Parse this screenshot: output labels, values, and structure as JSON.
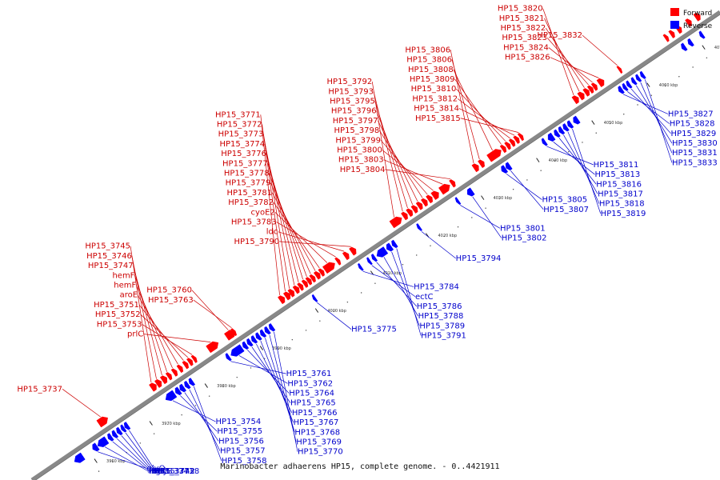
{
  "legend": {
    "forward_label": "Forward",
    "reverse_label": "Reverse",
    "forward_color": "#ff0000",
    "reverse_color": "#0000ff"
  },
  "caption": "Marinobacter adhaerens HP15, complete genome. - 0..4421911",
  "colors": {
    "axis": "#888888",
    "axis_dark": "#555555"
  },
  "ticks": [
    {
      "label": "3960 kbp",
      "kb": 3960
    },
    {
      "label": "3970 kbp",
      "kb": 3970
    },
    {
      "label": "3980 kbp",
      "kb": 3980
    },
    {
      "label": "3990 kbp",
      "kb": 3990
    },
    {
      "label": "4000 kbp",
      "kb": 4000
    },
    {
      "label": "4010 kbp",
      "kb": 4010
    },
    {
      "label": "4020 kbp",
      "kb": 4020
    },
    {
      "label": "4030 kbp",
      "kb": 4030
    },
    {
      "label": "4040 kbp",
      "kb": 4040
    },
    {
      "label": "4050 kbp",
      "kb": 4050
    },
    {
      "label": "4060 kbp",
      "kb": 4060
    },
    {
      "label": "4070 kbp",
      "kb": 4070
    }
  ],
  "forward_genes": [
    {
      "kb": 3963.5,
      "len": 1.6,
      "label": "HP15_3737"
    },
    {
      "kb": 3973.0,
      "len": 0.9,
      "label": "HP15_3745"
    },
    {
      "kb": 3974.0,
      "len": 0.8,
      "label": "HP15_3746"
    },
    {
      "kb": 3975.0,
      "len": 0.8,
      "label": "HP15_3747"
    },
    {
      "kb": 3976.0,
      "len": 0.6,
      "label": "hemF"
    },
    {
      "kb": 3977.0,
      "len": 0.6,
      "label": "hemF"
    },
    {
      "kb": 3978.0,
      "len": 0.6,
      "label": "aroE"
    },
    {
      "kb": 3979.0,
      "len": 0.6,
      "label": "HP15_3751"
    },
    {
      "kb": 3979.8,
      "len": 0.6,
      "label": "HP15_3752"
    },
    {
      "kb": 3980.6,
      "len": 0.5,
      "label": "HP15_3753"
    },
    {
      "kb": 3983.3,
      "len": 1.8,
      "label": "prlC"
    },
    {
      "kb": 3986.6,
      "len": 1.6,
      "label": "HP15_3760"
    },
    {
      "kb": 3987.8,
      "len": 0.4,
      "label": "HP15_3763"
    },
    {
      "kb": 3996.3,
      "len": 0.8,
      "label": "HP15_3771"
    },
    {
      "kb": 3997.3,
      "len": 0.8,
      "label": "HP15_3772"
    },
    {
      "kb": 3998.1,
      "len": 0.7,
      "label": "HP15_3773"
    },
    {
      "kb": 3999.0,
      "len": 0.7,
      "label": "HP15_3774"
    },
    {
      "kb": 3999.8,
      "len": 0.6,
      "label": "HP15_3776"
    },
    {
      "kb": 4000.6,
      "len": 0.6,
      "label": "HP15_3777"
    },
    {
      "kb": 4001.3,
      "len": 0.6,
      "label": "HP15_3778"
    },
    {
      "kb": 4002.0,
      "len": 0.6,
      "label": "HP15_3779"
    },
    {
      "kb": 4002.8,
      "len": 0.7,
      "label": "HP15_3781"
    },
    {
      "kb": 4003.6,
      "len": 0.6,
      "label": "HP15_3782"
    },
    {
      "kb": 4004.4,
      "len": 1.8,
      "label": "cyoE2"
    },
    {
      "kb": 4006.6,
      "len": 0.5,
      "label": "HP15_3783"
    },
    {
      "kb": 4008.0,
      "len": 0.7,
      "label": "ldc"
    },
    {
      "kb": 4009.2,
      "len": 0.8,
      "label": "HP15_3790"
    },
    {
      "kb": 4016.5,
      "len": 1.8,
      "label": "HP15_3792"
    },
    {
      "kb": 4018.6,
      "len": 0.7,
      "label": "HP15_3793"
    },
    {
      "kb": 4019.5,
      "len": 0.7,
      "label": "HP15_3795"
    },
    {
      "kb": 4020.4,
      "len": 0.7,
      "label": "HP15_3796"
    },
    {
      "kb": 4021.3,
      "len": 0.7,
      "label": "HP15_3797"
    },
    {
      "kb": 4022.2,
      "len": 0.7,
      "label": "HP15_3798"
    },
    {
      "kb": 4023.1,
      "len": 0.7,
      "label": "HP15_3799"
    },
    {
      "kb": 4024.0,
      "len": 1.0,
      "label": "HP15_3800"
    },
    {
      "kb": 4025.4,
      "len": 1.6,
      "label": "HP15_3803"
    },
    {
      "kb": 4027.3,
      "len": 0.6,
      "label": "HP15_3804"
    },
    {
      "kb": 4031.4,
      "len": 0.8,
      "label": "HP15_3806"
    },
    {
      "kb": 4032.5,
      "len": 0.7,
      "label": "HP15_3806"
    },
    {
      "kb": 4034.1,
      "len": 2.2,
      "label": "HP15_3808"
    },
    {
      "kb": 4036.5,
      "len": 0.6,
      "label": "HP15_3809"
    },
    {
      "kb": 4037.3,
      "len": 0.6,
      "label": "HP15_3810"
    },
    {
      "kb": 4038.1,
      "len": 0.6,
      "label": "HP15_3812"
    },
    {
      "kb": 4038.9,
      "len": 0.6,
      "label": "HP15_3814"
    },
    {
      "kb": 4039.7,
      "len": 0.5,
      "label": "HP15_3815"
    },
    {
      "kb": 4049.5,
      "len": 0.8,
      "label": "HP15_3820"
    },
    {
      "kb": 4050.5,
      "len": 0.8,
      "label": "HP15_3821"
    },
    {
      "kb": 4051.5,
      "len": 0.7,
      "label": "HP15_3822"
    },
    {
      "kb": 4052.3,
      "len": 0.6,
      "label": "HP15_3823"
    },
    {
      "kb": 4053.0,
      "len": 0.6,
      "label": "HP15_3824"
    },
    {
      "kb": 4054.0,
      "len": 0.9,
      "label": "HP15_3826"
    },
    {
      "kb": 4057.6,
      "len": 0.4,
      "label": "HP15_3832"
    },
    {
      "kb": 4066.0,
      "len": 0.5,
      "label": ""
    },
    {
      "kb": 4067.0,
      "len": 0.6,
      "label": ""
    },
    {
      "kb": 4068.2,
      "len": 0.7,
      "label": ""
    },
    {
      "kb": 4070.0,
      "len": 0.7,
      "label": ""
    },
    {
      "kb": 4071.5,
      "len": 0.8,
      "label": ""
    }
  ],
  "reverse_genes": [
    {
      "kb": 3957.3,
      "len": 1.5,
      "label": ""
    },
    {
      "kb": 3960.6,
      "len": 0.8,
      "label": "glyQ"
    },
    {
      "kb": 3961.5,
      "len": 1.6,
      "label": "HP15_3741"
    },
    {
      "kb": 3963.4,
      "len": 0.6,
      "label": "HP15_3742"
    },
    {
      "kb": 3964.2,
      "len": 0.6,
      "label": "fmt"
    },
    {
      "kb": 3965.0,
      "len": 0.6,
      "label": "def"
    },
    {
      "kb": 3965.8,
      "len": 0.5,
      "label": "HP15_3738"
    },
    {
      "kb": 3966.4,
      "len": 0.6,
      "label": "glyS"
    },
    {
      "kb": 3973.8,
      "len": 1.6,
      "label": "HP15_3754"
    },
    {
      "kb": 3975.6,
      "len": 0.7,
      "label": "HP15_3755"
    },
    {
      "kb": 3976.4,
      "len": 0.7,
      "label": "HP15_3756"
    },
    {
      "kb": 3977.3,
      "len": 0.6,
      "label": "HP15_3757"
    },
    {
      "kb": 3978.1,
      "len": 0.6,
      "label": "HP15_3758"
    },
    {
      "kb": 3984.8,
      "len": 0.5,
      "label": "HP15_3761"
    },
    {
      "kb": 3985.6,
      "len": 2.0,
      "label": "HP15_3762"
    },
    {
      "kb": 3987.8,
      "len": 0.6,
      "label": "HP15_3764"
    },
    {
      "kb": 3988.6,
      "len": 0.6,
      "label": "HP15_3765"
    },
    {
      "kb": 3989.4,
      "len": 0.6,
      "label": "HP15_3766"
    },
    {
      "kb": 3990.2,
      "len": 0.6,
      "label": "HP15_3767"
    },
    {
      "kb": 3991.0,
      "len": 0.6,
      "label": "HP15_3768"
    },
    {
      "kb": 3991.8,
      "len": 0.6,
      "label": "HP15_3769"
    },
    {
      "kb": 3992.6,
      "len": 0.6,
      "label": "HP15_3770"
    },
    {
      "kb": 4000.5,
      "len": 0.4,
      "label": "HP15_3775"
    },
    {
      "kb": 4008.8,
      "len": 0.4,
      "label": "HP15_3784"
    },
    {
      "kb": 4010.4,
      "len": 0.4,
      "label": "ectC"
    },
    {
      "kb": 4011.2,
      "len": 0.5,
      "label": "HP15_3786"
    },
    {
      "kb": 4012.0,
      "len": 1.6,
      "label": "HP15_3788"
    },
    {
      "kb": 4013.8,
      "len": 0.8,
      "label": "HP15_3789"
    },
    {
      "kb": 4014.8,
      "len": 0.6,
      "label": "HP15_3791"
    },
    {
      "kb": 4019.4,
      "len": 0.4,
      "label": "HP15_3794"
    },
    {
      "kb": 4026.4,
      "len": 0.4,
      "label": "HP15_3801"
    },
    {
      "kb": 4028.4,
      "len": 0.9,
      "label": "HP15_3802"
    },
    {
      "kb": 4034.6,
      "len": 0.7,
      "label": "HP15_3805"
    },
    {
      "kb": 4035.4,
      "len": 0.7,
      "label": "HP15_3807"
    },
    {
      "kb": 4042.0,
      "len": 0.5,
      "label": "HP15_3811"
    },
    {
      "kb": 4043.0,
      "len": 0.9,
      "label": "HP15_3813"
    },
    {
      "kb": 4044.2,
      "len": 0.6,
      "label": "HP15_3816"
    },
    {
      "kb": 4045.0,
      "len": 0.6,
      "label": "HP15_3817"
    },
    {
      "kb": 4045.8,
      "len": 0.6,
      "label": "HP15_3818"
    },
    {
      "kb": 4046.6,
      "len": 0.6,
      "label": "HP15_3819"
    },
    {
      "kb": 4047.6,
      "len": 0.8,
      "label": ""
    },
    {
      "kb": 4055.8,
      "len": 0.6,
      "label": "HP15_3827"
    },
    {
      "kb": 4056.6,
      "len": 0.5,
      "label": "HP15_3828"
    },
    {
      "kb": 4057.3,
      "len": 0.5,
      "label": "HP15_3829"
    },
    {
      "kb": 4058.2,
      "len": 0.5,
      "label": "HP15_3830"
    },
    {
      "kb": 4059.0,
      "len": 0.5,
      "label": "HP15_3831"
    },
    {
      "kb": 4059.8,
      "len": 0.5,
      "label": "HP15_3833"
    },
    {
      "kb": 4067.2,
      "len": 0.6,
      "label": ""
    },
    {
      "kb": 4068.4,
      "len": 0.6,
      "label": ""
    },
    {
      "kb": 4070.5,
      "len": 0.5,
      "label": ""
    }
  ]
}
